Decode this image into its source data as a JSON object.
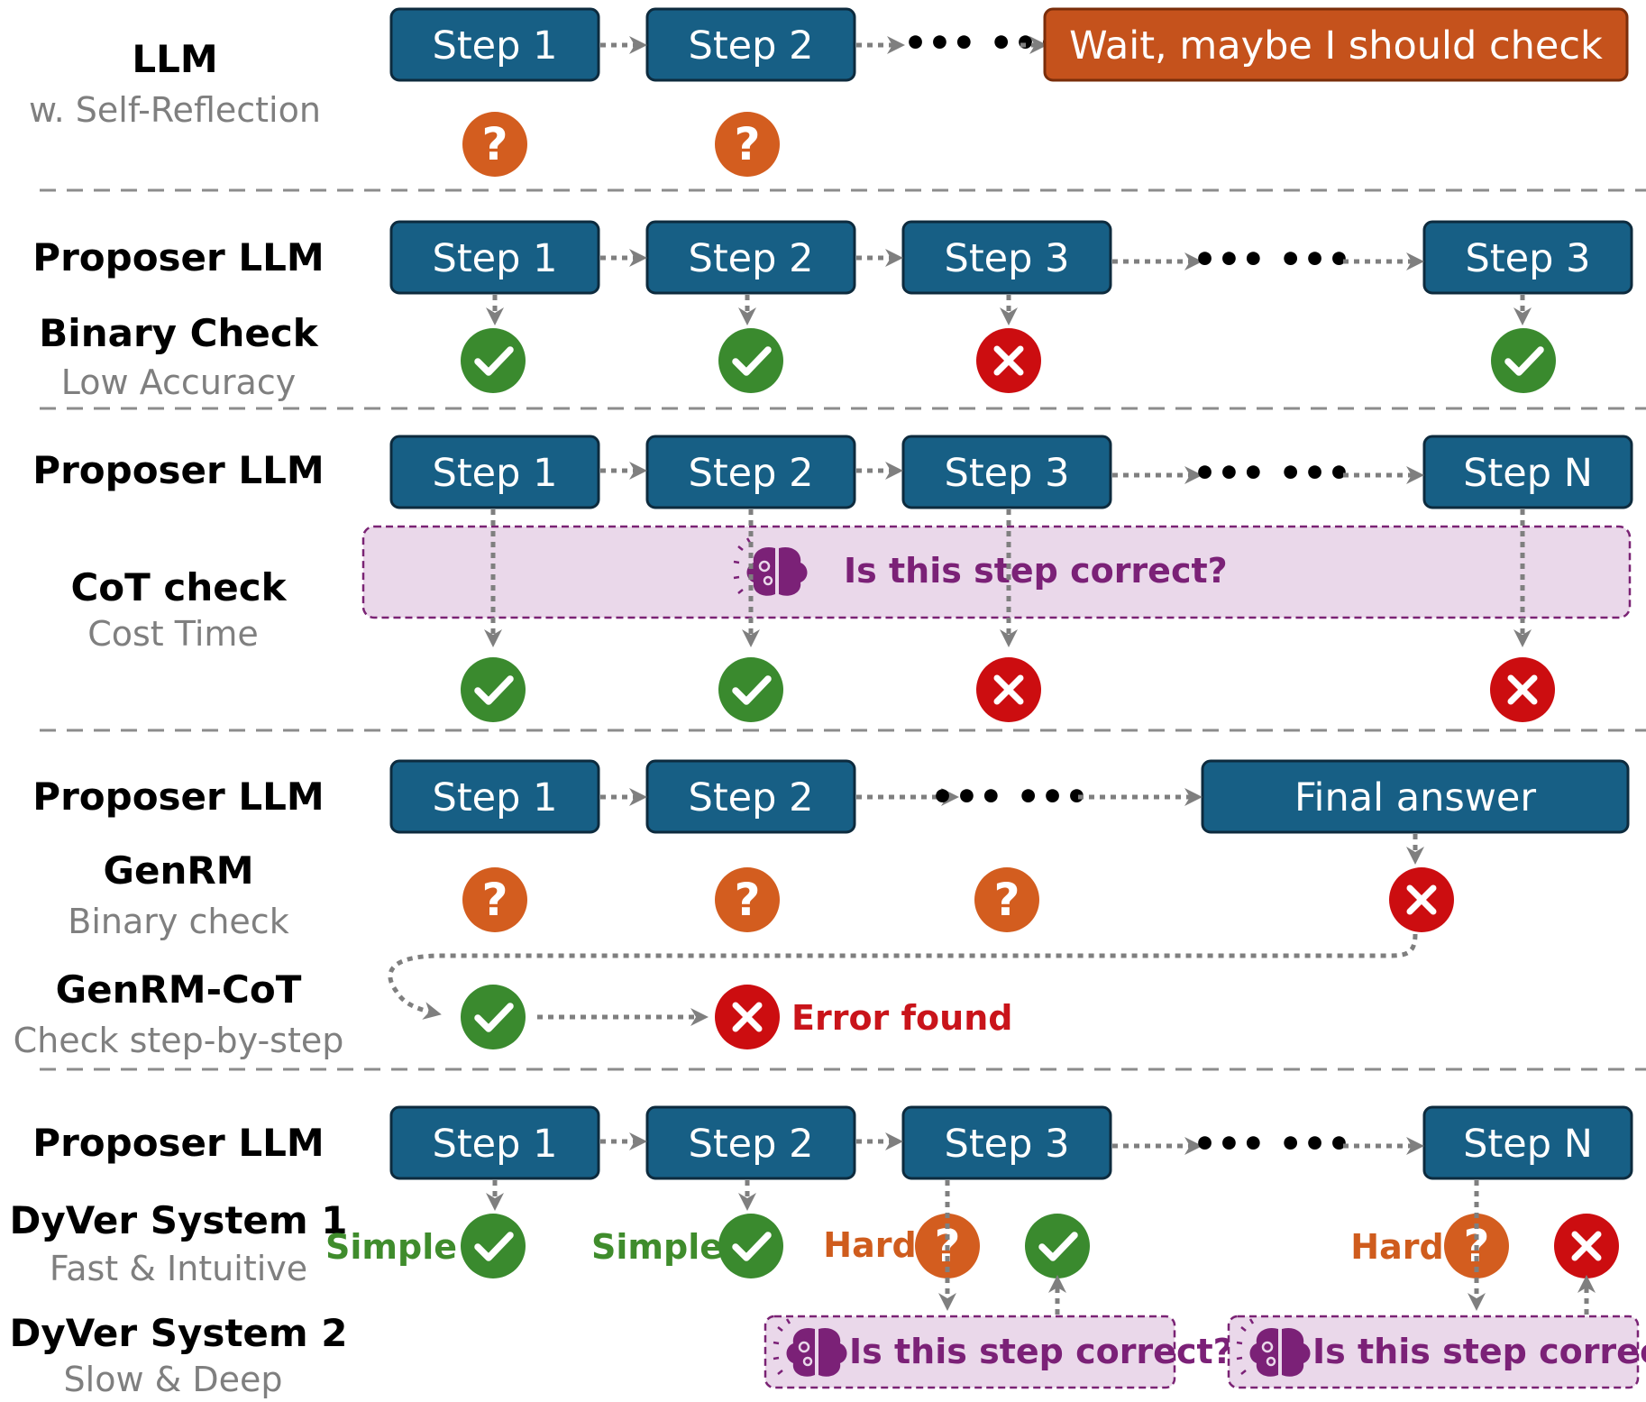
{
  "colors": {
    "step_fill": "#175f85",
    "step_stroke": "#0d2b3e",
    "wait_fill": "#c5521c",
    "wait_stroke": "#7a2d0a",
    "check_green": "#3a8a2e",
    "cross_red": "#cc0d10",
    "question_orange": "#d35d1f",
    "bubble_fill": "#ead8ea",
    "bubble_border": "#7a2374",
    "bubble_text": "#7b2177",
    "simple_green": "#3f8c2c",
    "hard_orange": "#cf5c1d",
    "error_red": "#c9141a",
    "divider": "#8c8c8c"
  },
  "icons": {
    "check": "check-icon",
    "cross": "cross-icon",
    "question": "question-icon",
    "brain": "brain-icon"
  },
  "rows": {
    "self_reflection": {
      "title": "LLM",
      "subtitle": "w. Self-Reflection",
      "steps": [
        "Step 1",
        "Step 2"
      ],
      "wait_text": "Wait, maybe I should check"
    },
    "binary_check": {
      "proposer": "Proposer LLM",
      "checker": "Binary Check",
      "checker_sub": "Low Accuracy",
      "steps": [
        "Step 1",
        "Step 2",
        "Step 3",
        "Step 3"
      ]
    },
    "cot_check": {
      "proposer": "Proposer LLM",
      "checker": "CoT check",
      "checker_sub": "Cost Time",
      "steps": [
        "Step 1",
        "Step 2",
        "Step 3",
        "Step N"
      ],
      "bubble": "Is this step correct?"
    },
    "genrm": {
      "proposer": "Proposer LLM",
      "checker": "GenRM",
      "checker_sub": "Binary check",
      "cot_title": "GenRM-CoT",
      "cot_sub": "Check step-by-step",
      "steps": [
        "Step 1",
        "Step 2"
      ],
      "final": "Final answer",
      "error": "Error found"
    },
    "dyver": {
      "proposer": "Proposer LLM",
      "system1": "DyVer System 1",
      "system1_sub": "Fast & Intuitive",
      "system2": "DyVer System 2",
      "system2_sub": "Slow & Deep",
      "steps": [
        "Step 1",
        "Step 2",
        "Step 3",
        "Step N"
      ],
      "simple": "Simple",
      "hard": "Hard",
      "bubble": "Is this step correct?"
    }
  },
  "ellipsis": "•••  •••"
}
